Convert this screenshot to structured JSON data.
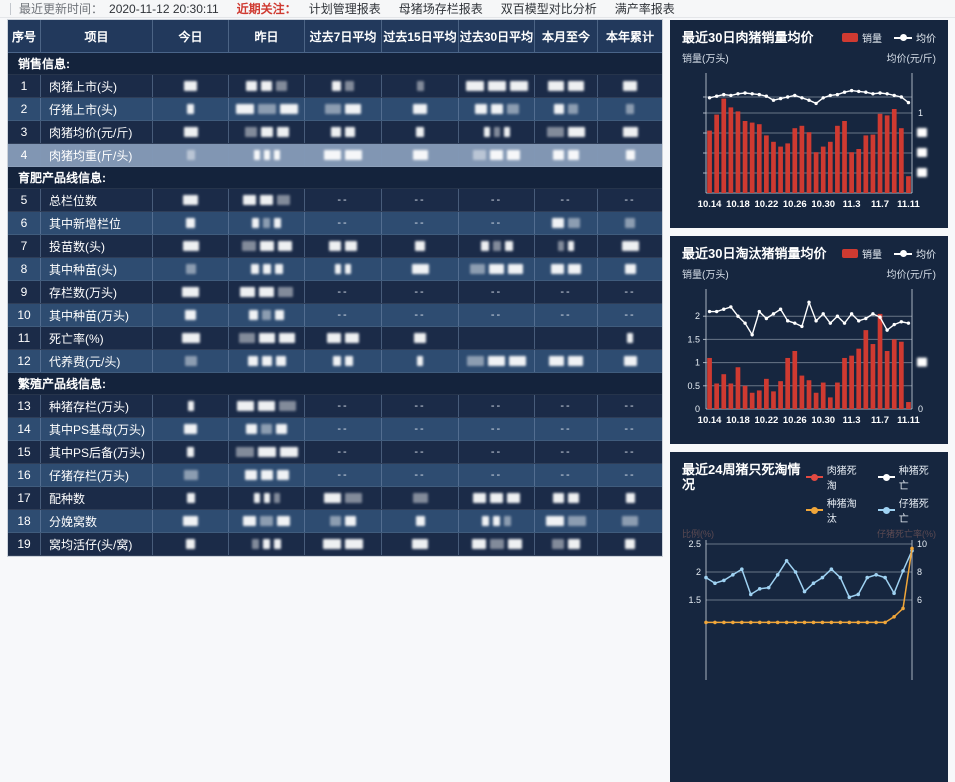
{
  "topbar": {
    "update_label": "最近更新时间：",
    "update_time": "2020-11-12 20:30:11",
    "focus_label": "近期关注：",
    "menu": [
      "计划管理报表",
      "母猪场存栏报表",
      "双百模型对比分析",
      "满产率报表"
    ]
  },
  "table": {
    "headers": [
      "序号",
      "项目",
      "今日",
      "昨日",
      "过去7日平均",
      "过去15日平均",
      "过去30日平均",
      "本月至今",
      "本年累计"
    ],
    "sections": [
      {
        "title": "销售信息:",
        "rows": [
          {
            "no": "1",
            "label": "肉猪上市(头)",
            "cells": [
              "b",
              "b",
              "b",
              "b",
              "b",
              "b",
              "b"
            ]
          },
          {
            "no": "2",
            "label": "仔猪上市(头)",
            "cells": [
              "b",
              "b",
              "b",
              "b",
              "b",
              "b",
              "b"
            ]
          },
          {
            "no": "3",
            "label": "肉猪均价(元/斤)",
            "cells": [
              "b",
              "b",
              "b",
              "b",
              "b",
              "b",
              "b"
            ]
          },
          {
            "no": "4",
            "label": "肉猪均重(斤/头)",
            "cells": [
              "b",
              "b",
              "b",
              "b",
              "b",
              "b",
              "b"
            ],
            "highlight": true
          }
        ]
      },
      {
        "title": "育肥产品线信息:",
        "rows": [
          {
            "no": "5",
            "label": "总栏位数",
            "cells": [
              "b",
              "b",
              "-",
              "-",
              "-",
              "-",
              "-"
            ]
          },
          {
            "no": "6",
            "label": "其中新增栏位",
            "cells": [
              "b",
              "b",
              "-",
              "-",
              "-",
              "b",
              "b"
            ]
          },
          {
            "no": "7",
            "label": "投苗数(头)",
            "cells": [
              "b",
              "b",
              "b",
              "b",
              "b",
              "b",
              "b"
            ]
          },
          {
            "no": "8",
            "label": "其中种苗(头)",
            "cells": [
              "b",
              "b",
              "b",
              "b",
              "b",
              "b",
              "b"
            ]
          },
          {
            "no": "9",
            "label": "存栏数(万头)",
            "cells": [
              "b",
              "b",
              "-",
              "-",
              "-",
              "-",
              "-"
            ]
          },
          {
            "no": "10",
            "label": "其中种苗(万头)",
            "cells": [
              "b",
              "b",
              "-",
              "-",
              "-",
              "-",
              "-"
            ]
          },
          {
            "no": "11",
            "label": "死亡率(%)",
            "cells": [
              "b",
              "b",
              "b",
              "b",
              "",
              "",
              "b"
            ]
          },
          {
            "no": "12",
            "label": "代养费(元/头)",
            "cells": [
              "b",
              "b",
              "b",
              "b",
              "b",
              "b",
              "b"
            ]
          }
        ]
      },
      {
        "title": "繁殖产品线信息:",
        "rows": [
          {
            "no": "13",
            "label": "种猪存栏(万头)",
            "cells": [
              "b",
              "b",
              "-",
              "-",
              "-",
              "-",
              "-"
            ]
          },
          {
            "no": "14",
            "label": "其中PS基母(万头)",
            "cells": [
              "b",
              "b",
              "-",
              "-",
              "-",
              "-",
              "-"
            ]
          },
          {
            "no": "15",
            "label": "其中PS后备(万头)",
            "cells": [
              "b",
              "b",
              "-",
              "-",
              "-",
              "-",
              "-"
            ]
          },
          {
            "no": "16",
            "label": "仔猪存栏(万头)",
            "cells": [
              "b",
              "b",
              "-",
              "-",
              "-",
              "-",
              "-"
            ]
          },
          {
            "no": "17",
            "label": "配种数",
            "cells": [
              "b",
              "b",
              "b",
              "b",
              "b",
              "b",
              "b"
            ]
          },
          {
            "no": "18",
            "label": "分娩窝数",
            "cells": [
              "b",
              "b",
              "b",
              "b",
              "b",
              "b",
              "b"
            ]
          },
          {
            "no": "19",
            "label": "窝均活仔(头/窝)",
            "cells": [
              "b",
              "b",
              "b",
              "b",
              "b",
              "b",
              "b"
            ]
          }
        ]
      }
    ]
  },
  "charts": [
    {
      "type": "bar+line",
      "title": "最近30日肉猪销量均价",
      "legend": [
        "销量",
        "均价"
      ],
      "ylabel_left": "销量(万头)",
      "ylabel_right": "均价(元/斤)",
      "x_labels": [
        "10.14",
        "10.18",
        "10.22",
        "10.26",
        "10.30",
        "11.3",
        "11.7",
        "11.11"
      ],
      "x_label_step": 4,
      "ylim": [
        0,
        1.45
      ],
      "gridlines": [
        0.25,
        0.5,
        0.75,
        1.0,
        1.2
      ],
      "right_ticks": [
        {
          "v": 1.0,
          "t": "1"
        },
        {
          "v": 0.75,
          "t": "blur"
        },
        {
          "v": 0.5,
          "t": "blur"
        },
        {
          "v": 0.25,
          "t": "blur"
        }
      ],
      "left_ticks": [],
      "bars": [
        0.78,
        0.98,
        1.18,
        1.07,
        1.02,
        0.9,
        0.88,
        0.86,
        0.72,
        0.64,
        0.58,
        0.62,
        0.81,
        0.84,
        0.76,
        0.51,
        0.58,
        0.64,
        0.84,
        0.9,
        0.51,
        0.55,
        0.72,
        0.73,
        0.99,
        0.97,
        1.05,
        0.81,
        0.21
      ],
      "line": [
        1.19,
        1.21,
        1.23,
        1.22,
        1.24,
        1.25,
        1.24,
        1.23,
        1.21,
        1.16,
        1.18,
        1.2,
        1.22,
        1.19,
        1.16,
        1.12,
        1.19,
        1.22,
        1.23,
        1.26,
        1.28,
        1.27,
        1.26,
        1.24,
        1.25,
        1.24,
        1.22,
        1.2,
        1.13
      ]
    },
    {
      "type": "bar+line",
      "title": "最近30日淘汰猪销量均价",
      "legend": [
        "销量",
        "均价"
      ],
      "ylabel_left": "销量(万头)",
      "ylabel_right": "均价(元/斤)",
      "x_labels": [
        "10.14",
        "10.18",
        "10.22",
        "10.26",
        "10.30",
        "11.3",
        "11.7",
        "11.11"
      ],
      "x_label_step": 4,
      "ylim": [
        0,
        2.5
      ],
      "gridlines": [
        0.5,
        1.0,
        1.5,
        2.0
      ],
      "left_ticks": [
        {
          "v": 2.0,
          "t": "2"
        },
        {
          "v": 1.5,
          "t": "1.5"
        },
        {
          "v": 1.0,
          "t": "1"
        },
        {
          "v": 0.5,
          "t": "0.5"
        },
        {
          "v": 0,
          "t": "0"
        }
      ],
      "right_ticks": [
        {
          "v": 1.0,
          "t": "blur"
        },
        {
          "v": 0,
          "t": "0"
        }
      ],
      "bars": [
        1.1,
        0.55,
        0.75,
        0.55,
        0.9,
        0.5,
        0.35,
        0.4,
        0.65,
        0.38,
        0.6,
        1.1,
        1.25,
        0.72,
        0.62,
        0.35,
        0.57,
        0.25,
        0.57,
        1.1,
        1.15,
        1.3,
        1.7,
        1.4,
        2.05,
        1.25,
        1.5,
        1.45,
        0.15
      ],
      "line": [
        2.1,
        2.1,
        2.15,
        2.2,
        2.0,
        1.85,
        1.6,
        2.1,
        1.95,
        2.05,
        2.15,
        1.9,
        1.85,
        1.78,
        2.3,
        1.9,
        2.05,
        1.85,
        2.0,
        1.85,
        2.05,
        1.9,
        1.95,
        2.05,
        1.98,
        1.7,
        1.82,
        1.88,
        1.85
      ]
    },
    {
      "type": "line",
      "title": "最近24周猪只死淘情况",
      "ylabel_left": "比例(%)",
      "ylabel_right": "仔猪死亡率(%)",
      "left_ticks": [
        {
          "v": 2.5,
          "t": "2.5"
        },
        {
          "v": 2.0,
          "t": "2"
        },
        {
          "v": 1.5,
          "t": "1.5"
        }
      ],
      "right_ticks": [
        {
          "v": 2.5,
          "t": "10"
        },
        {
          "v": 2.0,
          "t": "8"
        },
        {
          "v": 1.5,
          "t": "6"
        }
      ],
      "gridlines": [
        2.5,
        2.0,
        1.5
      ],
      "series_legend": [
        {
          "name": "肉猪死淘",
          "color": "#e24a42"
        },
        {
          "name": "种猪死亡",
          "color": "#ffffff"
        },
        {
          "name": "种猪淘汰",
          "color": "#f0a63a"
        },
        {
          "name": "仔猪死亡",
          "color": "#9fd2f2"
        }
      ],
      "series": [
        {
          "name": "仔猪死亡",
          "color": "#9fd2f2",
          "values": [
            1.9,
            1.8,
            1.85,
            1.95,
            2.05,
            1.6,
            1.7,
            1.72,
            1.95,
            2.2,
            2.0,
            1.65,
            1.8,
            1.9,
            2.05,
            1.9,
            1.55,
            1.6,
            1.9,
            1.95,
            1.9,
            1.62,
            2.02,
            2.38
          ]
        },
        {
          "name": "种猪淘汰",
          "color": "#f0a63a",
          "values": [
            1.1,
            1.1,
            1.1,
            1.1,
            1.1,
            1.1,
            1.1,
            1.1,
            1.1,
            1.1,
            1.1,
            1.1,
            1.1,
            1.1,
            1.1,
            1.1,
            1.1,
            1.1,
            1.1,
            1.1,
            1.1,
            1.2,
            1.35,
            2.42
          ]
        }
      ]
    }
  ],
  "colors": {
    "panel_navy": "#16263f",
    "row_dark": "#1b2b48",
    "row_light": "#2e4c71",
    "row_highlight": "#8196b3",
    "header_blue": "#22395c",
    "bar_red": "#cf3a31",
    "accent_red": "#cf3a31",
    "grid_gray": "rgba(205,214,224,0.45)",
    "line_white": "#ffffff"
  }
}
